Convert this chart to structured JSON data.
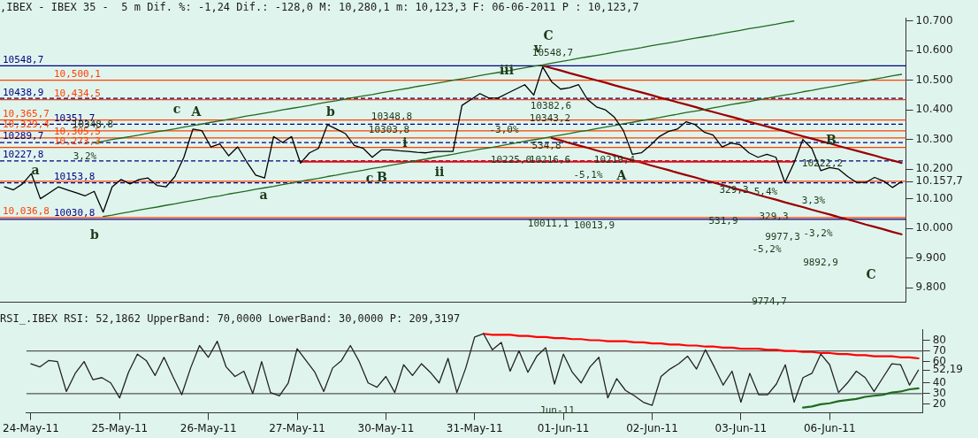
{
  "chart_data": [
    {
      "type": "line",
      "title": ",IBEX - IBEX 35 -  5 m Dif. %: -1,24 Dif.: -128,0 M: 10,280,1 m: 10,123,3 F: 06-06-2011 P : 10,123,7",
      "categories": [
        null,
        null,
        null,
        null,
        null,
        null,
        null,
        null,
        null,
        null,
        null,
        null,
        null,
        null,
        null,
        null,
        null,
        null,
        null,
        null,
        null,
        null,
        null,
        null,
        null,
        null,
        null,
        null,
        null,
        null,
        null,
        null,
        null,
        null,
        null,
        null,
        null,
        null,
        null,
        null,
        null,
        null,
        null,
        null,
        null,
        null,
        null,
        null,
        null,
        null,
        null,
        null,
        null,
        null,
        null,
        null,
        null,
        null,
        null,
        null,
        null,
        null,
        null,
        null,
        null,
        null,
        null,
        null,
        null,
        null,
        null,
        null,
        null,
        null,
        null,
        null,
        null,
        null,
        null,
        null,
        null,
        null,
        null,
        null,
        null,
        null,
        null,
        null,
        null,
        null,
        null,
        null,
        null,
        null,
        null,
        null,
        null,
        null,
        null,
        null,
        null
      ],
      "ylim": [
        9750,
        10710
      ],
      "yticks": [
        {
          "value": 9800,
          "label": "9.800"
        },
        {
          "value": 9900,
          "label": "9.900"
        },
        {
          "value": 10000,
          "label": "10.000"
        },
        {
          "value": 10100,
          "label": "10.100"
        },
        {
          "value": 10157.7,
          "label": "10.157,7"
        },
        {
          "value": 10200,
          "label": "10.200"
        },
        {
          "value": 10300,
          "label": "10.300"
        },
        {
          "value": 10400,
          "label": "10.400"
        },
        {
          "value": 10500,
          "label": "10.500"
        },
        {
          "value": 10600,
          "label": "10.600"
        },
        {
          "value": 10700,
          "label": "10.700"
        }
      ],
      "tick_labels": "y",
      "grid": false,
      "legend": false,
      "series": [
        {
          "color": "#000000",
          "values": [
            10140,
            10130,
            10150,
            10185,
            10100,
            10120,
            10140,
            10130,
            10120,
            10110,
            10125,
            10055,
            10140,
            10165,
            10150,
            10165,
            10170,
            10145,
            10140,
            10175,
            10240,
            10335,
            10330,
            10275,
            10285,
            10245,
            10275,
            10225,
            10180,
            10170,
            10310,
            10290,
            10310,
            10220,
            10255,
            10270,
            10350,
            10335,
            10320,
            10280,
            10270,
            10240,
            10265,
            10265,
            10262,
            10260,
            10257,
            10255,
            10260,
            10260,
            10260,
            10415,
            10435,
            10455,
            10440,
            10440,
            10455,
            10470,
            10485,
            10450,
            10545,
            10495,
            10470,
            10475,
            10485,
            10435,
            10410,
            10400,
            10375,
            10330,
            10250,
            10255,
            10280,
            10310,
            10327,
            10335,
            10360,
            10350,
            10325,
            10315,
            10275,
            10288,
            10282,
            10255,
            10240,
            10250,
            10240,
            10155,
            10220,
            10300,
            10270,
            10195,
            10205,
            10200,
            10175,
            10155,
            10155,
            10172,
            10160,
            10138,
            10158
          ]
        },
        {
          "type": "line",
          "color": "#1e6b1e",
          "values": [
            null,
            null,
            null,
            null,
            null,
            null,
            null,
            null,
            null,
            null,
            10289,
            10294,
            10300,
            10305,
            10310,
            10315,
            10321,
            10326,
            10331,
            10336,
            10342,
            10347,
            10352,
            10358,
            10363,
            10368,
            10373,
            10379,
            10384,
            10389,
            10394,
            10400,
            10405,
            10410,
            10415,
            10421,
            10426,
            10431,
            10437,
            10442,
            10447,
            10452,
            10458,
            10463,
            10468,
            10473,
            10479,
            10484,
            10489,
            10494,
            10500,
            10505,
            10510,
            10516,
            10521,
            10526,
            10531,
            10537,
            10542,
            10547,
            10552,
            10558,
            10563,
            10568,
            10574,
            10579,
            10584,
            10589,
            10595,
            10600,
            10605,
            10610,
            10616,
            10621,
            10626,
            10631,
            10637,
            10642,
            10647,
            10652,
            10658,
            10663,
            10668,
            10674,
            10679,
            10684,
            10689,
            10695,
            10700,
            null,
            null,
            null,
            null,
            null,
            null,
            null,
            null,
            null,
            null,
            null,
            null
          ]
        },
        {
          "type": "line",
          "color": "#1e6b1e",
          "values": [
            null,
            null,
            null,
            null,
            null,
            null,
            null,
            null,
            null,
            null,
            null,
            10040,
            10045,
            10051,
            10056,
            10062,
            10067,
            10072,
            10078,
            10083,
            10089,
            10094,
            10099,
            10105,
            10110,
            10116,
            10121,
            10126,
            10132,
            10137,
            10142,
            10148,
            10153,
            10159,
            10164,
            10169,
            10175,
            10180,
            10186,
            10191,
            10196,
            10202,
            10207,
            10213,
            10218,
            10223,
            10229,
            10234,
            10240,
            10245,
            10250,
            10256,
            10261,
            10267,
            10272,
            10277,
            10283,
            10288,
            10294,
            10299,
            10304,
            10310,
            10315,
            10320,
            10326,
            10331,
            10337,
            10342,
            10347,
            10353,
            10358,
            10364,
            10369,
            10374,
            10380,
            10385,
            10391,
            10396,
            10401,
            10407,
            10412,
            10418,
            10423,
            10428,
            10434,
            10439,
            10445,
            10450,
            10455,
            10461,
            10466,
            10472,
            10477,
            10482,
            10488,
            10493,
            10499,
            10504,
            10509,
            10515,
            10520
          ]
        },
        {
          "type": "line",
          "color": "#ff0000",
          "values": [
            null,
            null,
            null,
            null,
            null,
            null,
            null,
            null,
            null,
            null,
            null,
            null,
            null,
            null,
            null,
            null,
            null,
            null,
            null,
            null,
            null,
            null,
            null,
            null,
            null,
            null,
            null,
            null,
            null,
            null,
            null,
            null,
            null,
            10225,
            10225,
            10225,
            10225,
            10225,
            10225,
            10225,
            10225,
            10225,
            10225,
            10225,
            10225,
            10225,
            10225,
            10225,
            10225,
            10225,
            10225,
            10225,
            10225,
            10225,
            10225,
            10225,
            10225,
            10225,
            10225,
            10225,
            10225,
            10225,
            10225,
            10225,
            10225,
            10225,
            10225,
            10225,
            10225,
            10225,
            10225,
            10225,
            10225,
            10225,
            10225,
            10225,
            10225,
            10225,
            10225,
            10225,
            10225,
            10225,
            10225,
            10225,
            10225,
            10225,
            10225,
            10225,
            10225,
            null,
            null,
            null,
            null,
            null,
            null,
            null,
            null,
            null,
            null,
            null,
            null
          ]
        },
        {
          "type": "line",
          "color": "#990000",
          "values": [
            null,
            null,
            null,
            null,
            null,
            null,
            null,
            null,
            null,
            null,
            null,
            null,
            null,
            null,
            null,
            null,
            null,
            null,
            null,
            null,
            null,
            null,
            null,
            null,
            null,
            null,
            null,
            null,
            null,
            null,
            null,
            null,
            null,
            null,
            null,
            null,
            null,
            null,
            null,
            null,
            null,
            null,
            null,
            null,
            null,
            null,
            null,
            null,
            null,
            null,
            null,
            null,
            null,
            null,
            null,
            null,
            null,
            null,
            null,
            null,
            10549,
            10541,
            10533,
            10524,
            10516,
            10508,
            10500,
            10492,
            10483,
            10475,
            10467,
            10459,
            10451,
            10442,
            10434,
            10426,
            10418,
            10410,
            10401,
            10393,
            10385,
            10377,
            10369,
            10360,
            10352,
            10344,
            10336,
            10328,
            10319,
            10311,
            10303,
            10295,
            10287,
            10278,
            10270,
            10262,
            10254,
            10246,
            10237,
            10229,
            10221
          ]
        },
        {
          "type": "line",
          "color": "#990000",
          "values": [
            null,
            null,
            null,
            null,
            null,
            null,
            null,
            null,
            null,
            null,
            null,
            null,
            null,
            null,
            null,
            null,
            null,
            null,
            null,
            null,
            null,
            null,
            null,
            null,
            null,
            null,
            null,
            null,
            null,
            null,
            null,
            null,
            null,
            null,
            null,
            null,
            null,
            null,
            null,
            null,
            null,
            null,
            null,
            null,
            null,
            null,
            null,
            null,
            null,
            null,
            null,
            null,
            null,
            null,
            null,
            null,
            null,
            null,
            null,
            null,
            null,
            10305,
            10297,
            10288,
            10280,
            10272,
            10263,
            10255,
            10247,
            10238,
            10230,
            10222,
            10213,
            10205,
            10197,
            10188,
            10180,
            10172,
            10163,
            10155,
            10147,
            10138,
            10130,
            10122,
            10113,
            10105,
            10097,
            10088,
            10080,
            10072,
            10063,
            10055,
            10047,
            10038,
            10030,
            10022,
            10013,
            10005,
            9997,
            9988,
            9980
          ]
        }
      ],
      "ref_lines": [
        {
          "axis": "y",
          "value": 10548.7,
          "label": "10548,7",
          "color": "#000080",
          "line_style": "solid"
        },
        {
          "axis": "y",
          "value": 10500.1,
          "label": "10,500,1",
          "color": "#ff4000",
          "line_style": "solid"
        },
        {
          "axis": "y",
          "value": 10438.9,
          "label": "10438,9",
          "color": "#000080",
          "line_style": "dashed"
        },
        {
          "axis": "y",
          "value": 10434.5,
          "label": "10,434,5",
          "color": "#ff4000",
          "line_style": "solid"
        },
        {
          "axis": "y",
          "value": 10365.7,
          "label": "10,365,7",
          "color": "#ff4000",
          "line_style": "solid"
        },
        {
          "axis": "y",
          "value": 10351.7,
          "label": "10351,7",
          "color": "#000080",
          "line_style": "dashed"
        },
        {
          "axis": "y",
          "value": 10329.4,
          "label": "10,329,4",
          "color": "#ff4000",
          "line_style": "solid"
        },
        {
          "axis": "y",
          "value": 10305.5,
          "label": "10,305,5",
          "color": "#ff4000",
          "line_style": "solid"
        },
        {
          "axis": "y",
          "value": 10289.7,
          "label": "10289,7",
          "color": "#000080",
          "line_style": "dashed"
        },
        {
          "axis": "y",
          "value": 10273.3,
          "label": "10,273,3",
          "color": "#ff4000",
          "line_style": "solid"
        },
        {
          "axis": "y",
          "value": 10227.8,
          "label": "10227,8",
          "color": "#000080",
          "line_style": "dashed"
        },
        {
          "axis": "y",
          "value": 10159,
          "color": "#ff4000",
          "line_style": "solid"
        },
        {
          "axis": "y",
          "value": 10153.8,
          "label": "10153,8",
          "color": "#000080",
          "line_style": "dashed"
        },
        {
          "axis": "y",
          "value": 10036.8,
          "label": "10,036,8",
          "color": "#ff4000",
          "line_style": "solid"
        },
        {
          "axis": "y",
          "value": 10030.8,
          "label": "10030,8",
          "color": "#000080",
          "line_style": "solid"
        }
      ],
      "annotations": [
        "c",
        "A",
        "a",
        "a",
        "b",
        "b",
        "c",
        "B",
        "i",
        "ii",
        "iii",
        "v",
        "C",
        "A",
        "B",
        "C",
        "10348,8",
        "3,2%",
        "10348,8",
        "10303,8",
        "-3,0%",
        "10548,7",
        "10382,6",
        "10343,2",
        "534,8",
        "10225,0",
        "10216,6",
        "10219,4",
        "-5,1%",
        "10011,1",
        "10013,9",
        "531,9",
        "329,3",
        "5,4%",
        "329,3",
        "-5,2%",
        "9977,3",
        "9774,7",
        "10222,2",
        "3,3%",
        "-3,2%",
        "9892,9"
      ]
    },
    {
      "type": "line",
      "title": "RSI_.IBEX RSI: 52,1862 UpperBand: 70,0000 LowerBand: 30,0000 P: 209,3197",
      "categories": [
        "24-May-11",
        null,
        null,
        null,
        null,
        null,
        null,
        null,
        null,
        null,
        "25-May-11",
        null,
        null,
        null,
        null,
        null,
        null,
        null,
        null,
        null,
        "26-May-11",
        null,
        null,
        null,
        null,
        null,
        null,
        null,
        null,
        null,
        "27-May-11",
        null,
        null,
        null,
        null,
        null,
        null,
        null,
        null,
        null,
        "30-May-11",
        null,
        null,
        null,
        null,
        null,
        null,
        null,
        null,
        null,
        "31-May-11",
        null,
        null,
        null,
        null,
        null,
        null,
        null,
        null,
        null,
        "01-Jun-11",
        null,
        null,
        null,
        null,
        null,
        null,
        null,
        null,
        null,
        "02-Jun-11",
        null,
        null,
        null,
        null,
        null,
        null,
        null,
        null,
        null,
        "03-Jun-11",
        null,
        null,
        null,
        null,
        null,
        null,
        null,
        null,
        null,
        "06-Jun-11",
        null,
        null,
        null,
        null,
        null,
        null,
        null,
        null,
        null,
        null
      ],
      "ylim": [
        12,
        90
      ],
      "yticks": [
        20,
        30,
        40,
        {
          "value": 52.19,
          "label": "52,19"
        },
        60,
        70,
        80
      ],
      "grid": false,
      "legend": false,
      "series": [
        {
          "color": "#222222",
          "values": [
            58,
            55,
            61,
            60,
            32,
            49,
            60,
            43,
            45,
            40,
            26,
            50,
            67,
            61,
            47,
            64,
            46,
            29,
            54,
            75,
            64,
            79,
            55,
            46,
            51,
            30,
            60,
            31,
            28,
            40,
            72,
            61,
            50,
            32,
            54,
            61,
            75,
            60,
            40,
            36,
            46,
            31,
            57,
            47,
            58,
            50,
            40,
            63,
            31,
            54,
            83,
            86,
            71,
            78,
            51,
            70,
            50,
            65,
            73,
            39,
            67,
            50,
            40,
            55,
            64,
            26,
            44,
            33,
            28,
            22,
            19,
            46,
            53,
            58,
            65,
            53,
            71,
            55,
            38,
            51,
            22,
            49,
            29,
            29,
            39,
            57,
            22,
            45,
            49,
            67,
            57,
            31,
            40,
            51,
            45,
            32,
            45,
            58,
            57,
            38,
            52
          ]
        },
        {
          "type": "line",
          "color": "#ff0000",
          "values": [
            null,
            null,
            null,
            null,
            null,
            null,
            null,
            null,
            null,
            null,
            null,
            null,
            null,
            null,
            null,
            null,
            null,
            null,
            null,
            null,
            null,
            null,
            null,
            null,
            null,
            null,
            null,
            null,
            null,
            null,
            null,
            null,
            null,
            null,
            null,
            null,
            null,
            null,
            null,
            null,
            null,
            null,
            null,
            null,
            null,
            null,
            null,
            null,
            null,
            null,
            null,
            86,
            85,
            85,
            85,
            84,
            84,
            83,
            83,
            82,
            82,
            81,
            81,
            80,
            80,
            79,
            79,
            79,
            78,
            78,
            77,
            77,
            76,
            76,
            75,
            75,
            74,
            74,
            73,
            73,
            72,
            72,
            72,
            71,
            71,
            70,
            70,
            69,
            69,
            68,
            68,
            67,
            67,
            66,
            66,
            65,
            65,
            65,
            64,
            64,
            63
          ]
        },
        {
          "type": "line",
          "color": "#1e6b1e",
          "values": [
            null,
            null,
            null,
            null,
            null,
            null,
            null,
            null,
            null,
            null,
            null,
            null,
            null,
            null,
            null,
            null,
            null,
            null,
            null,
            null,
            null,
            null,
            null,
            null,
            null,
            null,
            null,
            null,
            null,
            null,
            null,
            null,
            null,
            null,
            null,
            null,
            null,
            null,
            null,
            null,
            null,
            null,
            null,
            null,
            null,
            null,
            null,
            null,
            null,
            null,
            null,
            null,
            null,
            null,
            null,
            null,
            null,
            null,
            null,
            null,
            null,
            null,
            null,
            null,
            null,
            null,
            null,
            null,
            null,
            null,
            null,
            null,
            null,
            null,
            null,
            null,
            null,
            null,
            null,
            null,
            null,
            null,
            null,
            null,
            null,
            null,
            null,
            17,
            18,
            20,
            21,
            23,
            24,
            25,
            27,
            28,
            29,
            31,
            32,
            34,
            35
          ]
        }
      ],
      "ref_lines": [
        {
          "axis": "y",
          "value": 70,
          "color": "#555555",
          "line_style": "solid"
        },
        {
          "axis": "y",
          "value": 30,
          "color": "#555555",
          "line_style": "solid"
        }
      ],
      "annotations": [
        "Jun-11"
      ]
    }
  ]
}
